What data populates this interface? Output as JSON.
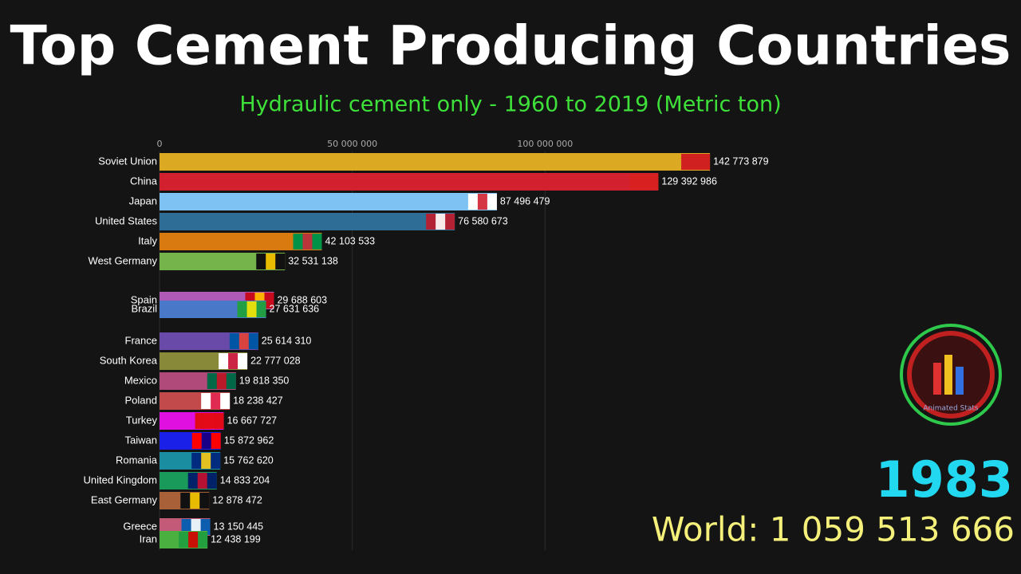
{
  "chart_data": {
    "type": "bar",
    "title": "Top Cement Producing Countries",
    "subtitle": "Hydraulic cement only - 1960 to 2019 (Metric ton)",
    "year": "1983",
    "total": "World: 1 059 513 666",
    "logo_text": "Animated Stats",
    "categories": [
      "Soviet Union",
      "China",
      "Japan",
      "United States",
      "Italy",
      "West Germany",
      "Spain",
      "Brazil",
      "France",
      "South Korea",
      "Mexico",
      "Poland",
      "Turkey",
      "Taiwan",
      "Romania",
      "United Kingdom",
      "East Germany",
      "Greece",
      "Iran"
    ],
    "values": [
      142773879,
      129392986,
      87496479,
      76580673,
      42103533,
      32531138,
      29688603,
      27631636,
      25614310,
      22777028,
      19818350,
      18238427,
      16667727,
      15872962,
      15762620,
      14833204,
      12878472,
      13150445,
      12438199
    ],
    "value_labels": [
      "142 773 879",
      "129 392 986",
      "87 496 479",
      "76 580 673",
      "42 103 533",
      "32 531 138",
      "29 688 603",
      "27 631 636",
      "25 614 310",
      "22 777 028",
      "19 818 350",
      "18 238 427",
      "16 667 727",
      "15 872 962",
      "15 762 620",
      "14 833 204",
      "12 878 472",
      "13 150 445",
      "12 438 199"
    ],
    "colors": [
      "#dcaa22",
      "#d2202e",
      "#7ec2f4",
      "#2e6e96",
      "#d97a10",
      "#74b44a",
      "#b05ab8",
      "#4a78c8",
      "#6a4aa8",
      "#888a3a",
      "#b04a7a",
      "#c24a4a",
      "#e010e0",
      "#1a20e8",
      "#1a8ea0",
      "#1a9a5a",
      "#a86038",
      "#c25a78",
      "#4ab040"
    ],
    "xlim": [
      0,
      150000000
    ],
    "xticks": [
      {
        "value": 0,
        "label": "0"
      },
      {
        "value": 50000000,
        "label": "50 000 000"
      },
      {
        "value": 100000000,
        "label": "100 000 000"
      }
    ],
    "grid": true
  }
}
